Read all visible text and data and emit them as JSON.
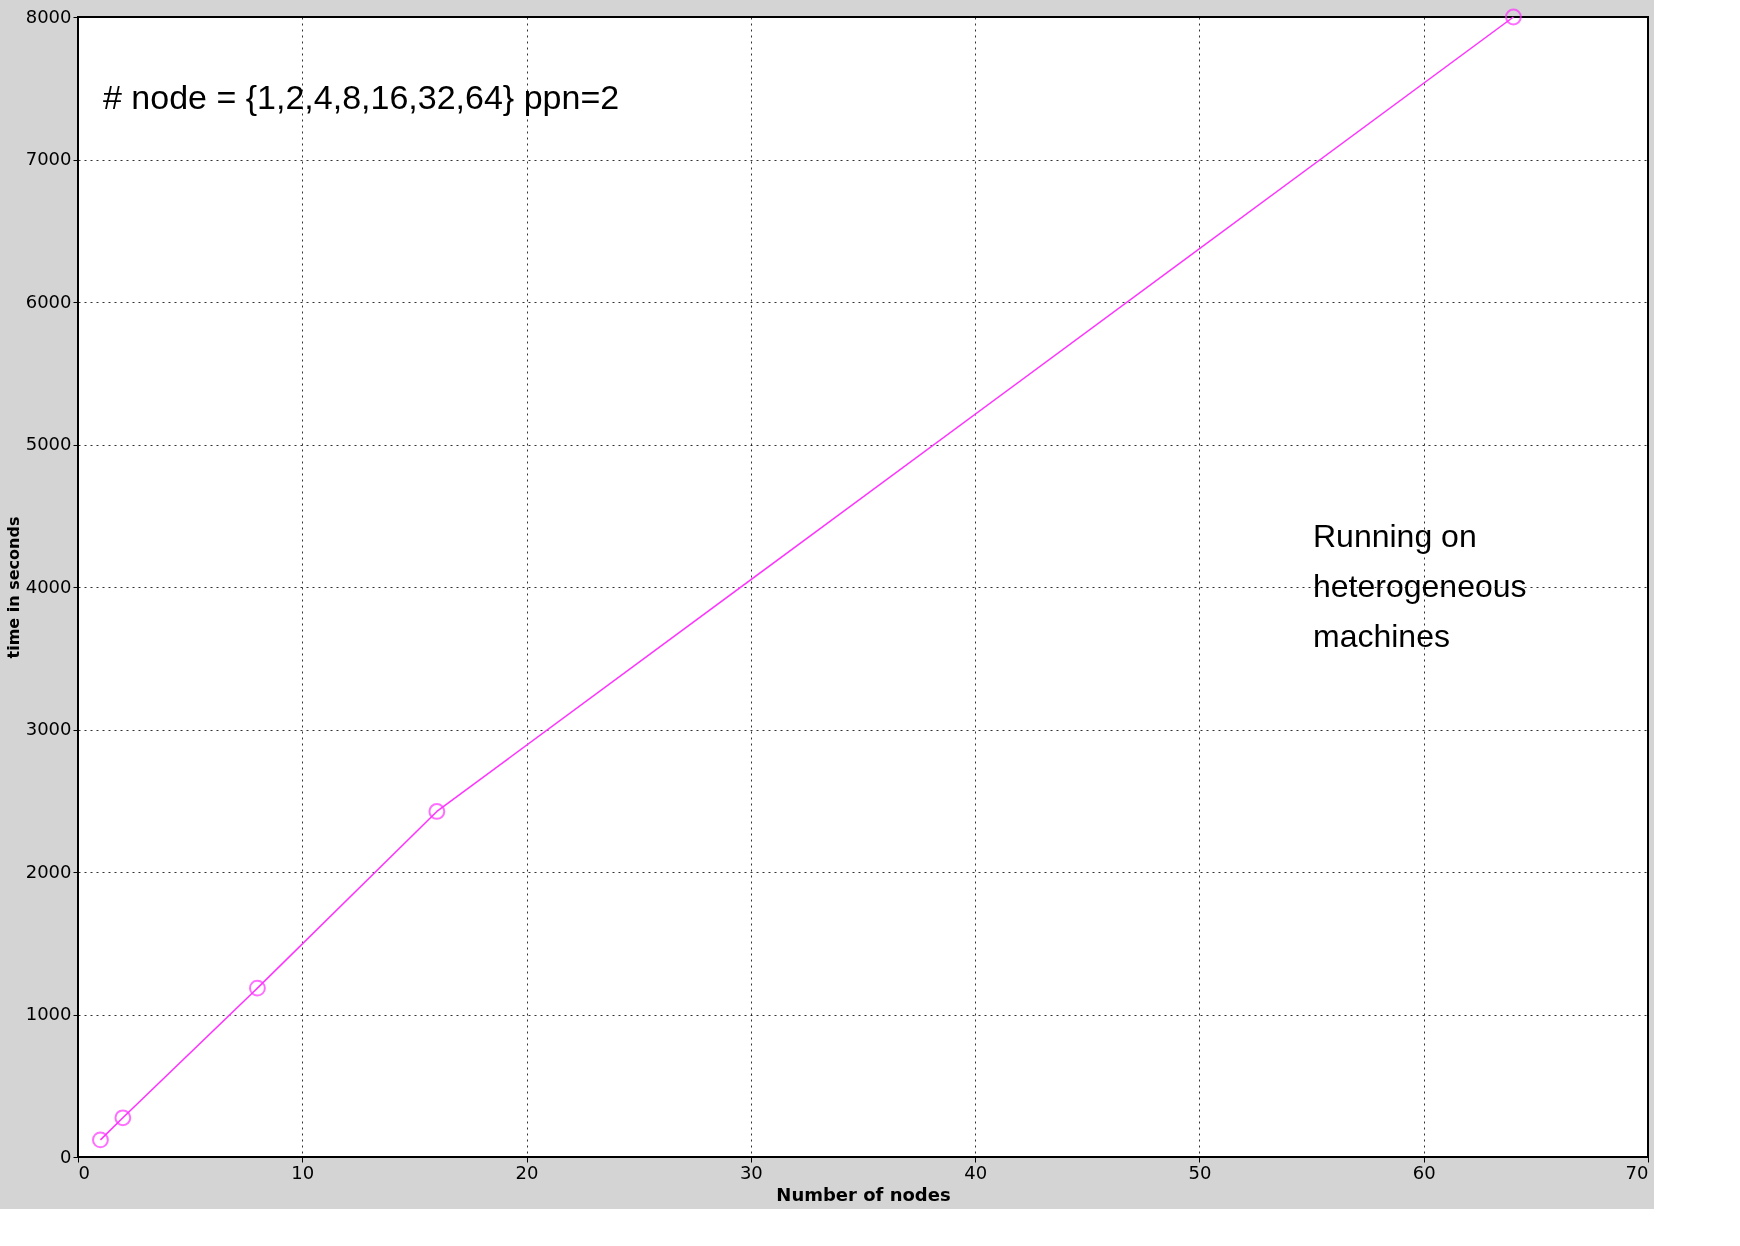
{
  "chart_data": {
    "type": "line",
    "xlabel": "Number of nodes",
    "ylabel": "time in seconds",
    "x": [
      1,
      2,
      8,
      16,
      64
    ],
    "series": [
      {
        "color": "#ff33ff",
        "values": [
          120,
          275,
          1185,
          2425,
          8000
        ]
      }
    ],
    "xlim": [
      0,
      70
    ],
    "xticks": [
      0,
      10,
      20,
      30,
      40,
      50,
      60,
      70
    ],
    "ylim": [
      0,
      8000
    ],
    "yticks": [
      0,
      1000,
      2000,
      3000,
      4000,
      5000,
      6000,
      7000,
      8000
    ],
    "grid": true,
    "marker": "circle",
    "line_style": "solid",
    "annotations": [
      "# node = {1,2,4,8,16,32,64} ppn=2",
      "Running on\nheterogeneous\nmachines"
    ]
  }
}
